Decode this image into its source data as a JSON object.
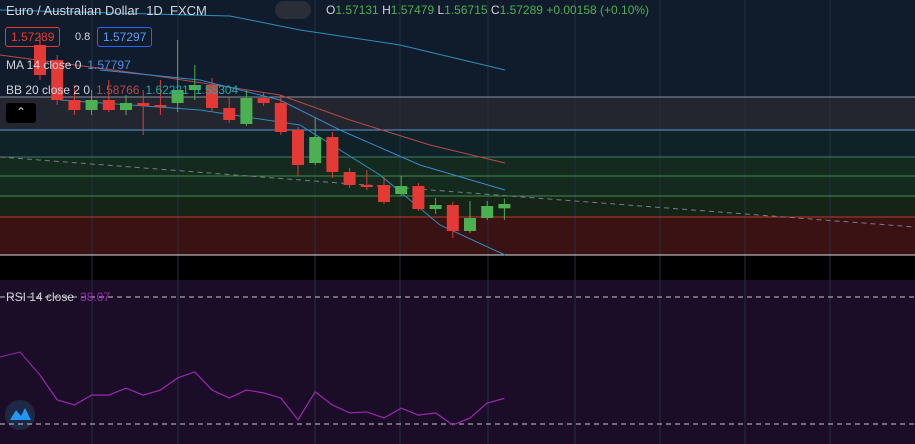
{
  "header": {
    "symbol": "Euro / Australian Dollar",
    "interval": "1D",
    "exchange": "FXCM",
    "open_label": "O",
    "open": "1.57131",
    "high_label": "H",
    "high": "1.57479",
    "low_label": "L",
    "low": "1.56715",
    "close_label": "C",
    "close": "1.57289",
    "change": "+0.00158 (+0.10%)",
    "bid": "1.57289",
    "spread": "0.8",
    "ask": "1.57297"
  },
  "indicators": {
    "ma_label": "MA 14 close 0",
    "ma_value": "1.57797",
    "bb_label": "BB 20 close 2 0",
    "bb_values": [
      "1.58766",
      "1.62221",
      "1.55304"
    ],
    "rsi_label": "RSI 14 close",
    "rsi_value": "38.07"
  },
  "chart_data": [
    {
      "type": "candlestick",
      "ylim": [
        1.55433,
        1.64715
      ],
      "up_color": "#4caf50",
      "down_color": "#e53935",
      "open": [
        1.63077,
        1.62531,
        1.61075,
        1.60711,
        1.61075,
        1.60711,
        1.60965,
        1.60893,
        1.60965,
        1.61439,
        1.61621,
        1.60783,
        1.60201,
        1.61147,
        1.60965,
        1.59983,
        1.58781,
        1.59728,
        1.58454,
        1.57981,
        1.57981,
        1.57653,
        1.57944,
        1.57107,
        1.57253,
        1.56306,
        1.56779,
        1.57131
      ],
      "high": [
        1.63441,
        1.62713,
        1.61621,
        1.61439,
        1.61803,
        1.61257,
        1.61439,
        1.61803,
        1.63259,
        1.62349,
        1.61875,
        1.61147,
        1.61439,
        1.61366,
        1.61257,
        1.60092,
        1.60419,
        1.5991,
        1.58599,
        1.58527,
        1.58272,
        1.58308,
        1.58053,
        1.57507,
        1.57362,
        1.57398,
        1.57398,
        1.57479
      ],
      "low": [
        1.61803,
        1.60893,
        1.60529,
        1.60529,
        1.60638,
        1.60529,
        1.59801,
        1.60529,
        1.60638,
        1.61075,
        1.60638,
        1.60237,
        1.60128,
        1.60856,
        1.59801,
        1.58308,
        1.58709,
        1.58235,
        1.57871,
        1.57799,
        1.57289,
        1.5758,
        1.57034,
        1.56925,
        1.56051,
        1.56233,
        1.56707,
        1.56715
      ],
      "close": [
        1.61985,
        1.61075,
        1.60711,
        1.61075,
        1.60711,
        1.60965,
        1.60856,
        1.6082,
        1.61439,
        1.61621,
        1.60783,
        1.60347,
        1.61147,
        1.60965,
        1.5991,
        1.58709,
        1.59728,
        1.58454,
        1.57981,
        1.57908,
        1.57362,
        1.57944,
        1.57107,
        1.57253,
        1.56306,
        1.56779,
        1.57216,
        1.57289
      ]
    },
    {
      "type": "line",
      "ylim": [
        23.7,
        75.35
      ],
      "color": "#9c27b0",
      "yticks": [
        30,
        70
      ],
      "values": [
        45.4,
        37.6,
        36.0,
        39.1,
        39.1,
        41.3,
        39.1,
        40.7,
        44.5,
        46.4,
        40.7,
        38.2,
        40.7,
        39.8,
        38.2,
        31.3,
        40.1,
        36.0,
        33.5,
        33.8,
        31.9,
        35.0,
        32.8,
        33.5,
        29.7,
        31.9,
        36.6,
        38.07
      ]
    }
  ]
}
